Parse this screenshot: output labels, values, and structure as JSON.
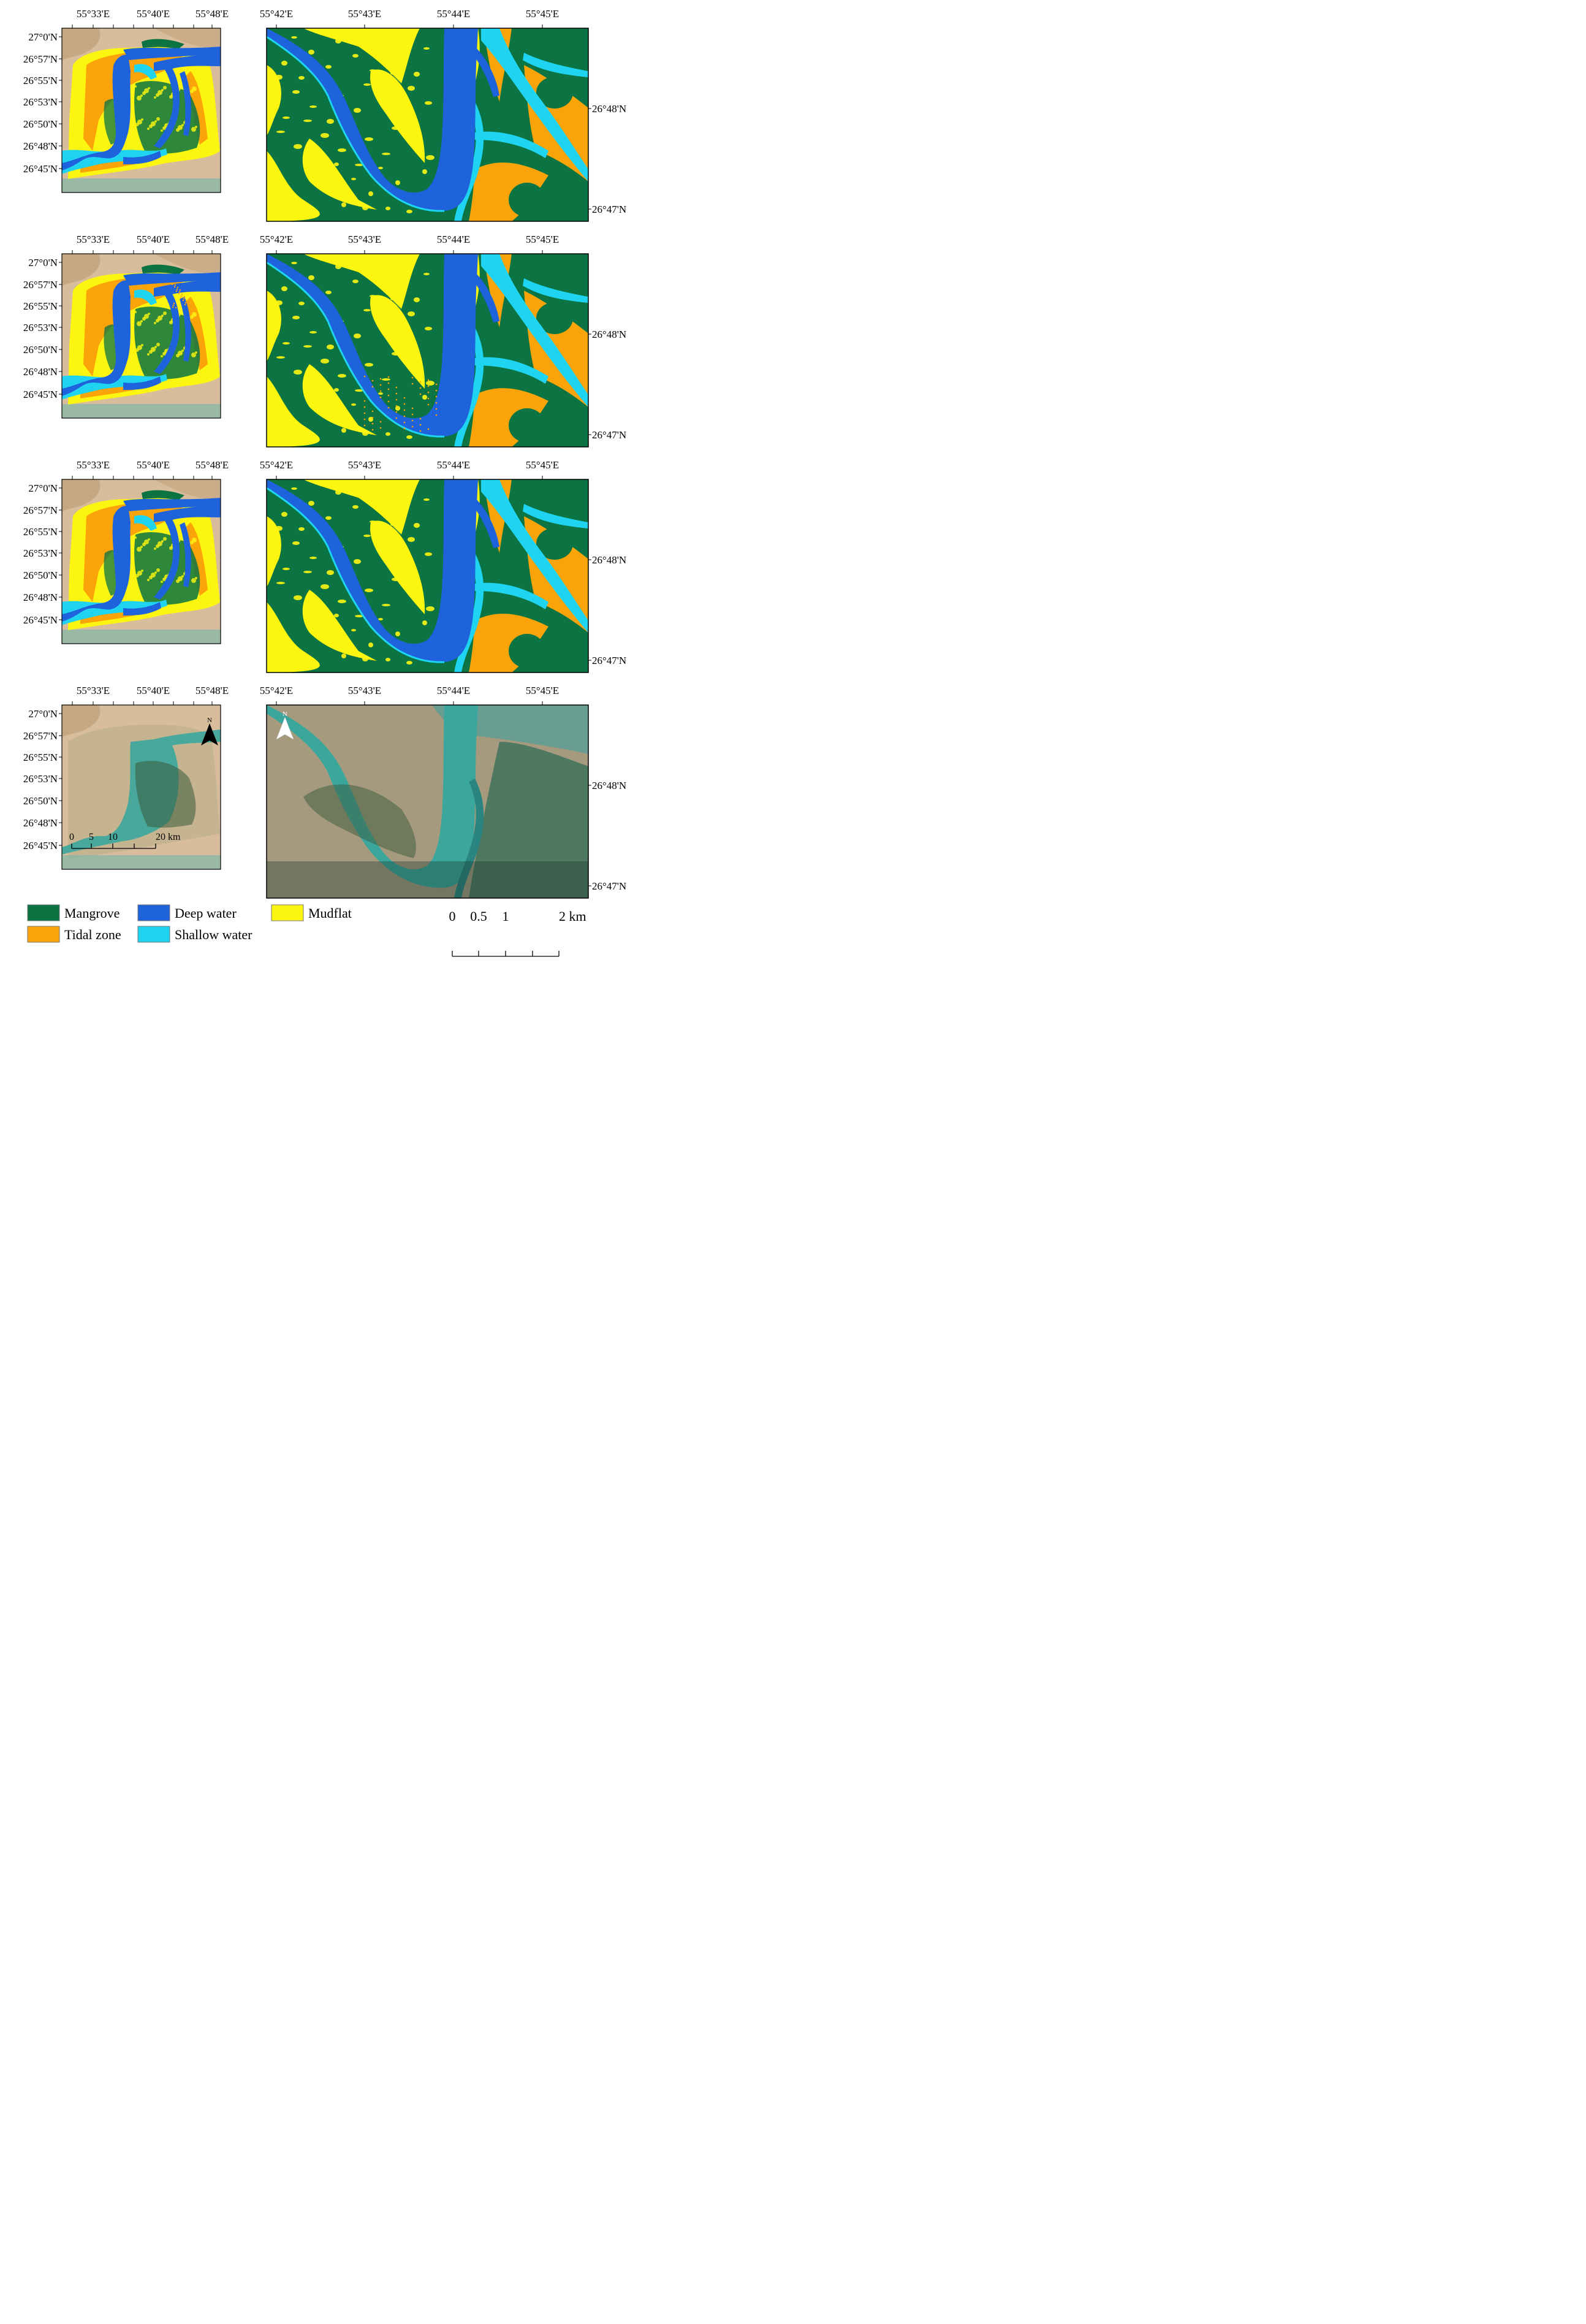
{
  "small_panel": {
    "lon_labels": [
      "55°33'E",
      "55°40'E",
      "55°48'E"
    ],
    "lat_labels": [
      "27°0'N",
      "26°57'N",
      "26°55'N",
      "26°53'N",
      "26°50'N",
      "26°48'N",
      "26°45'N"
    ]
  },
  "large_panel": {
    "lon_labels": [
      "55°42'E",
      "55°43'E",
      "55°44'E",
      "55°45'E"
    ],
    "lat_labels": [
      "26°48'N",
      "26°47'N"
    ]
  },
  "rows": [
    {
      "kind": "classified"
    },
    {
      "kind": "classified",
      "speckle": true
    },
    {
      "kind": "classified"
    },
    {
      "kind": "satellite"
    }
  ],
  "north_arrow": {
    "label": "N"
  },
  "small_scalebar": {
    "ticks": [
      "0",
      "5",
      "10",
      "20 km"
    ]
  },
  "large_scalebar": {
    "ticks": [
      "0",
      "0.5",
      "1",
      "2 km"
    ]
  },
  "legend": [
    {
      "key": "mangrove",
      "label": "Mangrove",
      "color": "#0b7442"
    },
    {
      "key": "deep",
      "label": "Deep water",
      "color": "#1e62dc"
    },
    {
      "key": "mudflat",
      "label": "Mudflat",
      "color": "#fcf50f"
    },
    {
      "key": "tidal",
      "label": "Tidal zone",
      "color": "#fba40a"
    },
    {
      "key": "shallow",
      "label": "Shallow water",
      "color": "#1ed4f0"
    }
  ],
  "colors": {
    "desert": "#d8bd9c",
    "desert_dark": "#c3a27f",
    "sat_water": "#3aa69c",
    "sat_water_dark": "#2a8580",
    "sat_veg": "#3a5a3c"
  }
}
